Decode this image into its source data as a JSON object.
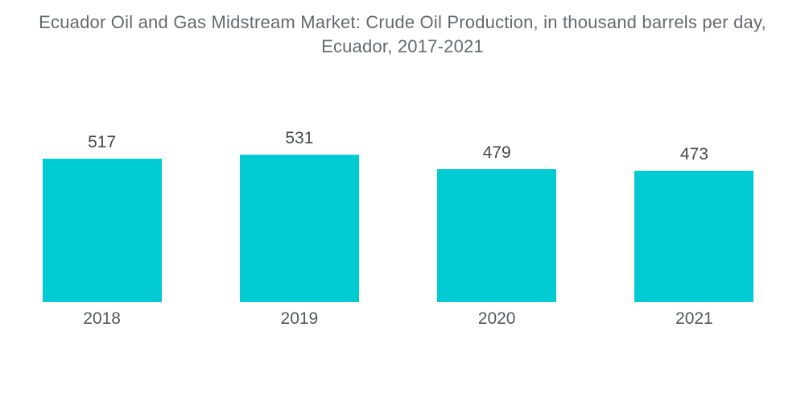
{
  "title": {
    "line1": "Ecuador Oil and Gas Midstream Market: Crude Oil Production, in thousand barrels per day,",
    "line2": "Ecuador, 2017-2021"
  },
  "chart_data": {
    "type": "bar",
    "title": "Ecuador Oil and Gas Midstream Market: Crude Oil Production, in thousand barrels per day, Ecuador, 2017-2021",
    "categories": [
      "2018",
      "2019",
      "2020",
      "2021"
    ],
    "values": [
      517,
      531,
      479,
      473
    ],
    "xlabel": "",
    "ylabel": "",
    "ylim": [
      0,
      531
    ],
    "grid": false,
    "legend_position": "none",
    "orientation": "vertical",
    "value_labels_shown": true,
    "colors": {
      "bar": "#00CBD2",
      "value_label": "#47494b",
      "category_label": "#55585b",
      "title": "#66696c",
      "background": "#FFFFFF"
    }
  }
}
